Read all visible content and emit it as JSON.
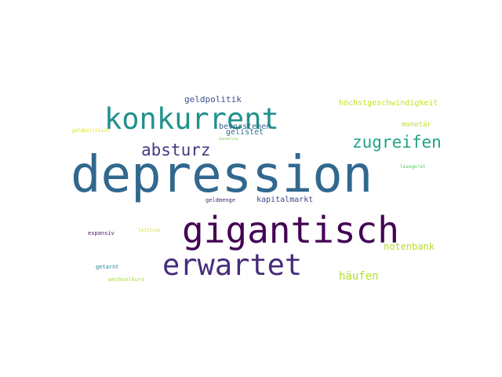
{
  "words": [
    {
      "text": "depression",
      "color": "#31688e"
    },
    {
      "text": "gigantisch",
      "color": "#440154"
    },
    {
      "text": "konkurrent",
      "color": "#21918c"
    },
    {
      "text": "erwartet",
      "color": "#472d7b"
    },
    {
      "text": "zugreifen",
      "color": "#20a386"
    },
    {
      "text": "absturz",
      "color": "#443a83"
    },
    {
      "text": "häufen",
      "color": "#b5de2b"
    },
    {
      "text": "notenbank",
      "color": "#b5de2b"
    },
    {
      "text": "geldpolitik",
      "color": "#3b528b"
    },
    {
      "text": "höchstgeschwindigkeit",
      "color": "#c8e020"
    },
    {
      "text": "bevorstehen",
      "color": "#35608d"
    },
    {
      "text": "gelistet",
      "color": "#2c728e"
    },
    {
      "text": "kapitalmarkt",
      "color": "#3e4989"
    },
    {
      "text": "monetär",
      "color": "#bddf26"
    },
    {
      "text": "geldmenge",
      "color": "#482878"
    },
    {
      "text": "wechselkurs",
      "color": "#a5db36"
    },
    {
      "text": "getarnt",
      "color": "#25838e"
    },
    {
      "text": "expansiv",
      "color": "#471063"
    },
    {
      "text": "geldpolitisch",
      "color": "#d8e219"
    },
    {
      "text": "lesegerät",
      "color": "#5ec962"
    },
    {
      "text": "leitzins",
      "color": "#d8e219"
    },
    {
      "text": "abwandlung",
      "color": "#7ad151"
    }
  ]
}
